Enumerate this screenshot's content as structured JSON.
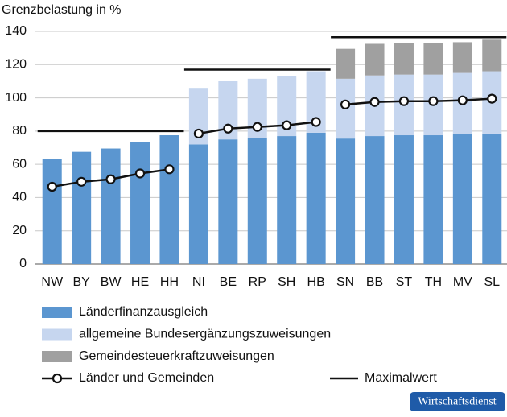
{
  "chart_data": {
    "type": "bar",
    "stacked": true,
    "y_label": "Grenzbelastung in %",
    "categories": [
      "NW",
      "BY",
      "BW",
      "HE",
      "HH",
      "NI",
      "BE",
      "RP",
      "SH",
      "HB",
      "SN",
      "BB",
      "ST",
      "TH",
      "MV",
      "SL"
    ],
    "ylim": [
      0,
      140
    ],
    "yticks": [
      0,
      20,
      40,
      60,
      80,
      100,
      120,
      140
    ],
    "grid": true,
    "series": [
      {
        "name": "Länderfinanzausgleich",
        "type": "bar",
        "color": "#5b96d0",
        "values": [
          63,
          67.5,
          69.5,
          73.5,
          77.5,
          72,
          75,
          76,
          77,
          79,
          75.5,
          77,
          77.5,
          77.5,
          78,
          78.5
        ]
      },
      {
        "name": "allgemeine Bundesergänzungszuweisungen",
        "type": "bar",
        "color": "#c6d6ef",
        "values": [
          null,
          null,
          null,
          null,
          null,
          34,
          35,
          35.5,
          36,
          37,
          36,
          36.5,
          36.5,
          36.5,
          37,
          37.5
        ]
      },
      {
        "name": "Gemeindesteuerkraftzuweisungen",
        "type": "bar",
        "color": "#a0a0a0",
        "values": [
          null,
          null,
          null,
          null,
          null,
          null,
          null,
          null,
          null,
          null,
          18,
          19,
          19,
          19,
          18.5,
          19
        ]
      },
      {
        "name": "Länder und Gemeinden",
        "type": "line",
        "color": "#111111",
        "values": [
          46.5,
          49.5,
          51,
          54.5,
          57,
          78.5,
          81.5,
          82.5,
          83.5,
          85.5,
          96,
          97.5,
          98,
          98,
          98.5,
          99.5
        ]
      },
      {
        "name": "Maximalwert",
        "type": "step",
        "color": "#111111",
        "values": [
          80,
          80,
          80,
          80,
          80,
          117,
          117,
          117,
          117,
          117,
          136.5,
          136.5,
          136.5,
          136.5,
          136.5,
          136.5
        ]
      }
    ],
    "badge": "Wirtschaftsdienst"
  }
}
